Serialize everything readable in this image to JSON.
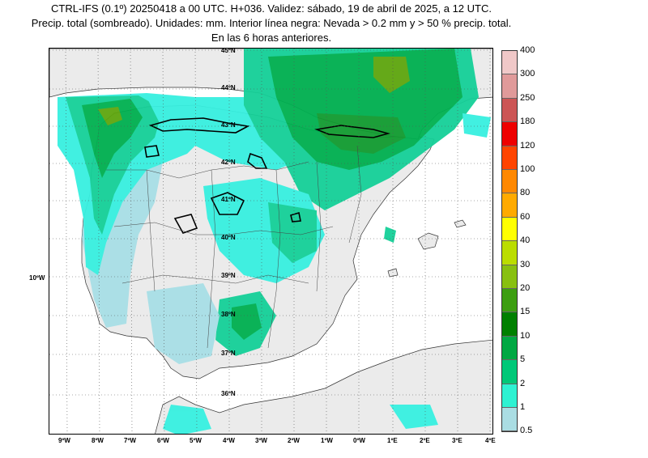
{
  "title": {
    "line1": "CTRL-IFS (0.1º) 20250418 a 00 UTC. H+036. Validez: sábado, 19 de abril de 2025, a 12 UTC.",
    "line2": "Precip. total (sombreado). Unidades: mm. Interior línea negra: Nevada > 0.2 mm y > 50 % precip. total.",
    "line3": "En las 6 horas anteriores."
  },
  "map": {
    "latitude_labels": [
      "45ºN",
      "44ºN",
      "43ºN",
      "42ºN",
      "41ºN",
      "40ºN",
      "39ºN",
      "38ºN",
      "37ºN",
      "36ºN"
    ],
    "longitude_labels": [
      "9ºW",
      "8ºW",
      "7ºW",
      "6ºW",
      "5ºW",
      "4ºW",
      "3ºW",
      "2ºW",
      "1ºW",
      "0ºW",
      "1ºE",
      "2ºE",
      "3ºE",
      "4ºE"
    ],
    "side_label": "10ºW",
    "colors": {
      "land": "#ebebeb",
      "sea": "#ffffff",
      "light_blue": "#a8dfe6",
      "cyan": "#37f0e0",
      "teal": "#15d098",
      "green": "#00b050",
      "dark_green": "#119b30",
      "olive": "#5ea60e"
    }
  },
  "legend": {
    "levels": [
      {
        "label": "400",
        "color": "#f0c8c8"
      },
      {
        "label": "300",
        "color": "#e09a9a"
      },
      {
        "label": "250",
        "color": "#cc5555"
      },
      {
        "label": "180",
        "color": "#ee0000"
      },
      {
        "label": "120",
        "color": "#ff4400"
      },
      {
        "label": "100",
        "color": "#ff8800"
      },
      {
        "label": "80",
        "color": "#ffaa00"
      },
      {
        "label": "60",
        "color": "#ffff00"
      },
      {
        "label": "40",
        "color": "#bbdd00"
      },
      {
        "label": "30",
        "color": "#88c010"
      },
      {
        "label": "20",
        "color": "#3c9e10"
      },
      {
        "label": "15",
        "color": "#008000"
      },
      {
        "label": "10",
        "color": "#00a843"
      },
      {
        "label": "5",
        "color": "#00c878"
      },
      {
        "label": "2",
        "color": "#2ef2d2"
      },
      {
        "label": "1",
        "color": "#aadde3"
      },
      {
        "label": "0.5",
        "color": ""
      }
    ]
  }
}
